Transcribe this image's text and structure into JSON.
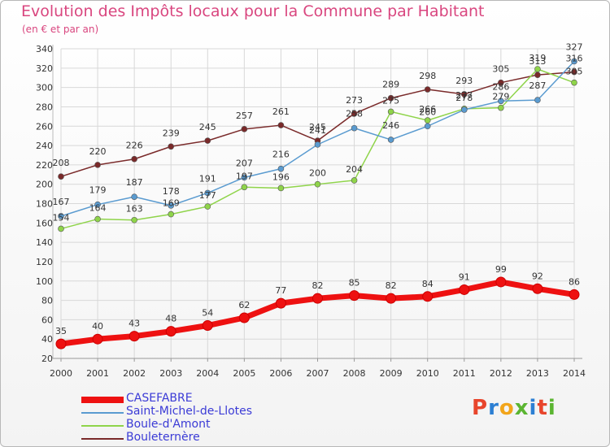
{
  "title": "Evolution des Impôts locaux pour la Commune par Habitant",
  "subtitle": "(en € et par an)",
  "logo_text": "Proxiti",
  "logo_colors": [
    "#e8452c",
    "#2c7fd3",
    "#f2a51a",
    "#5bb531",
    "#2c7fd3",
    "#e8452c",
    "#5bb531"
  ],
  "chart_data": {
    "type": "line",
    "x": [
      "2000",
      "2001",
      "2002",
      "2003",
      "2004",
      "2005",
      "2006",
      "2007",
      "2008",
      "2009",
      "2010",
      "2011",
      "2012",
      "2013",
      "2014"
    ],
    "ylim": [
      20,
      340
    ],
    "yticks": [
      20,
      40,
      60,
      80,
      100,
      120,
      140,
      160,
      180,
      200,
      220,
      240,
      260,
      280,
      300,
      320,
      340
    ],
    "grid": true,
    "legend_position": "bottom-left",
    "series": [
      {
        "name": "CASEFABRE",
        "color": "#ee1111",
        "values": [
          35,
          40,
          43,
          48,
          54,
          62,
          77,
          82,
          85,
          82,
          84,
          91,
          99,
          92,
          86
        ]
      },
      {
        "name": "Saint-Michel-de-Llotes",
        "color": "#5a9bd0",
        "values": [
          167,
          179,
          187,
          178,
          191,
          207,
          216,
          241,
          258,
          246,
          260,
          277,
          286,
          287,
          327
        ]
      },
      {
        "name": "Boule-d'Amont",
        "color": "#8fd44a",
        "values": [
          154,
          164,
          163,
          169,
          177,
          197,
          196,
          200,
          204,
          275,
          266,
          278,
          279,
          319,
          305
        ]
      },
      {
        "name": "Bouleternère",
        "color": "#7a2a2a",
        "values": [
          208,
          220,
          226,
          239,
          245,
          257,
          261,
          245,
          273,
          289,
          298,
          293,
          305,
          313,
          316
        ]
      }
    ],
    "labels": [
      [
        "35",
        "40",
        "43",
        "48",
        "54",
        "62",
        "77",
        "82",
        "85",
        "82",
        "84",
        "91",
        "99",
        "92",
        "86"
      ],
      [
        "167",
        "179",
        "187",
        "178",
        "191",
        "207",
        "216",
        "241",
        "258",
        "246",
        "260",
        "277",
        "286",
        "287",
        "327"
      ],
      [
        "154",
        "164",
        "163",
        "169",
        "177",
        "197",
        "196",
        "200",
        "204",
        "275",
        "266",
        "278",
        "279",
        "319",
        "305"
      ],
      [
        "208",
        "220",
        "226",
        "239",
        "245",
        "257",
        "261",
        "245",
        "273",
        "289",
        "298",
        "293",
        "305",
        "313",
        "316"
      ]
    ]
  }
}
